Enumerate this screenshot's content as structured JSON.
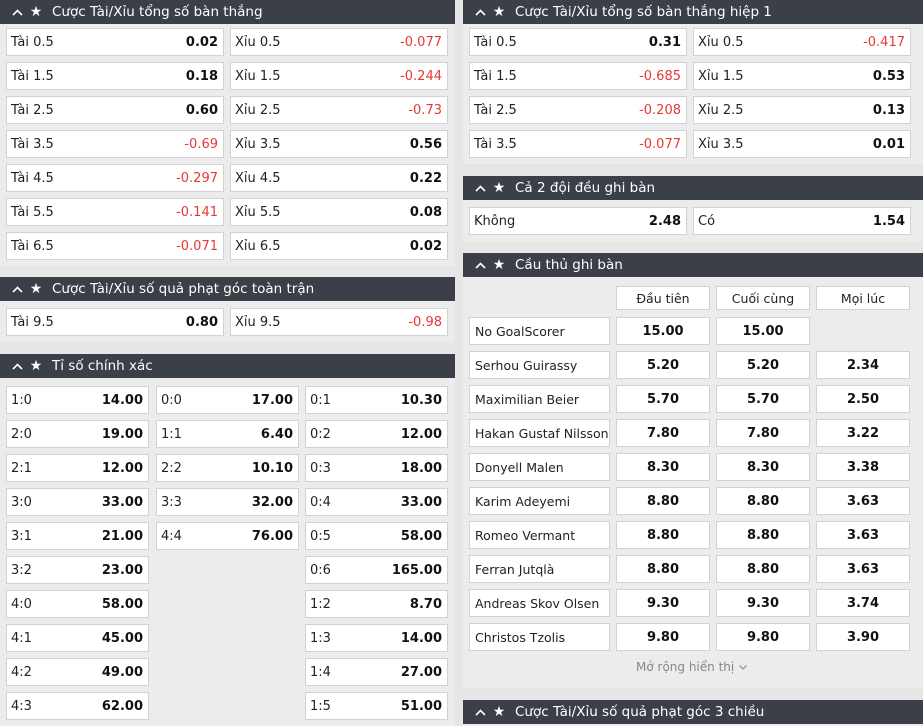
{
  "ou_goals": {
    "title": "Cược Tài/Xỉu tổng số bàn thắng",
    "rows": [
      {
        "over": "Tài 0.5",
        "over_val": "0.02",
        "over_neg": false,
        "under": "Xỉu 0.5",
        "under_val": "-0.077",
        "under_neg": true
      },
      {
        "over": "Tài 1.5",
        "over_val": "0.18",
        "over_neg": false,
        "under": "Xỉu 1.5",
        "under_val": "-0.244",
        "under_neg": true
      },
      {
        "over": "Tài 2.5",
        "over_val": "0.60",
        "over_neg": false,
        "under": "Xỉu 2.5",
        "under_val": "-0.73",
        "under_neg": true
      },
      {
        "over": "Tài 3.5",
        "over_val": "-0.69",
        "over_neg": true,
        "under": "Xỉu 3.5",
        "under_val": "0.56",
        "under_neg": false
      },
      {
        "over": "Tài 4.5",
        "over_val": "-0.297",
        "over_neg": true,
        "under": "Xỉu 4.5",
        "under_val": "0.22",
        "under_neg": false
      },
      {
        "over": "Tài 5.5",
        "over_val": "-0.141",
        "over_neg": true,
        "under": "Xỉu 5.5",
        "under_val": "0.08",
        "under_neg": false
      },
      {
        "over": "Tài 6.5",
        "over_val": "-0.071",
        "over_neg": true,
        "under": "Xỉu 6.5",
        "under_val": "0.02",
        "under_neg": false
      }
    ]
  },
  "ou_corners": {
    "title": "Cược Tài/Xỉu số quả phạt góc toàn trận",
    "rows": [
      {
        "over": "Tài 9.5",
        "over_val": "0.80",
        "over_neg": false,
        "under": "Xỉu 9.5",
        "under_val": "-0.98",
        "under_neg": true
      }
    ]
  },
  "correct_score": {
    "title": "Tỉ số chính xác",
    "col1": [
      {
        "score": "1:0",
        "odds": "14.00"
      },
      {
        "score": "2:0",
        "odds": "19.00"
      },
      {
        "score": "2:1",
        "odds": "12.00"
      },
      {
        "score": "3:0",
        "odds": "33.00"
      },
      {
        "score": "3:1",
        "odds": "21.00"
      },
      {
        "score": "3:2",
        "odds": "23.00"
      },
      {
        "score": "4:0",
        "odds": "58.00"
      },
      {
        "score": "4:1",
        "odds": "45.00"
      },
      {
        "score": "4:2",
        "odds": "49.00"
      },
      {
        "score": "4:3",
        "odds": "62.00"
      }
    ],
    "col2": [
      {
        "score": "0:0",
        "odds": "17.00"
      },
      {
        "score": "1:1",
        "odds": "6.40"
      },
      {
        "score": "2:2",
        "odds": "10.10"
      },
      {
        "score": "3:3",
        "odds": "32.00"
      },
      {
        "score": "4:4",
        "odds": "76.00"
      }
    ],
    "col3": [
      {
        "score": "0:1",
        "odds": "10.30"
      },
      {
        "score": "0:2",
        "odds": "12.00"
      },
      {
        "score": "0:3",
        "odds": "18.00"
      },
      {
        "score": "0:4",
        "odds": "33.00"
      },
      {
        "score": "0:5",
        "odds": "58.00"
      },
      {
        "score": "0:6",
        "odds": "165.00"
      },
      {
        "score": "1:2",
        "odds": "8.70"
      },
      {
        "score": "1:3",
        "odds": "14.00"
      },
      {
        "score": "1:4",
        "odds": "27.00"
      },
      {
        "score": "1:5",
        "odds": "51.00"
      }
    ]
  },
  "ou_goals_h1": {
    "title": "Cược Tài/Xỉu tổng số bàn thắng hiệp 1",
    "rows": [
      {
        "over": "Tài 0.5",
        "over_val": "0.31",
        "over_neg": false,
        "under": "Xỉu 0.5",
        "under_val": "-0.417",
        "under_neg": true
      },
      {
        "over": "Tài 1.5",
        "over_val": "-0.685",
        "over_neg": true,
        "under": "Xỉu 1.5",
        "under_val": "0.53",
        "under_neg": false
      },
      {
        "over": "Tài 2.5",
        "over_val": "-0.208",
        "over_neg": true,
        "under": "Xỉu 2.5",
        "under_val": "0.13",
        "under_neg": false
      },
      {
        "over": "Tài 3.5",
        "over_val": "-0.077",
        "over_neg": true,
        "under": "Xỉu 3.5",
        "under_val": "0.01",
        "under_neg": false
      }
    ]
  },
  "btts": {
    "title": "Cả 2 đội đều ghi bàn",
    "no_label": "Không",
    "no_val": "2.48",
    "yes_label": "Có",
    "yes_val": "1.54"
  },
  "scorers": {
    "title": "Cầu thủ ghi bàn",
    "headers": [
      "Đầu tiên",
      "Cuối cùng",
      "Mọi lúc"
    ],
    "rows": [
      {
        "name": "No GoalScorer",
        "first": "15.00",
        "last": "15.00",
        "any": ""
      },
      {
        "name": "Serhou Guirassy",
        "first": "5.20",
        "last": "5.20",
        "any": "2.34"
      },
      {
        "name": "Maximilian Beier",
        "first": "5.70",
        "last": "5.70",
        "any": "2.50"
      },
      {
        "name": "Hakan Gustaf Nilsson",
        "first": "7.80",
        "last": "7.80",
        "any": "3.22"
      },
      {
        "name": "Donyell Malen",
        "first": "8.30",
        "last": "8.30",
        "any": "3.38"
      },
      {
        "name": "Karim Adeyemi",
        "first": "8.80",
        "last": "8.80",
        "any": "3.63"
      },
      {
        "name": "Romeo Vermant",
        "first": "8.80",
        "last": "8.80",
        "any": "3.63"
      },
      {
        "name": "Ferran Jutqlà",
        "first": "8.80",
        "last": "8.80",
        "any": "3.63"
      },
      {
        "name": "Andreas Skov Olsen",
        "first": "9.30",
        "last": "9.30",
        "any": "3.74"
      },
      {
        "name": "Christos Tzolis",
        "first": "9.80",
        "last": "9.80",
        "any": "3.90"
      }
    ],
    "expand_label": "Mở rộng hiển thị"
  },
  "ou_corners_3way": {
    "title": "Cược Tài/Xỉu số quả phạt góc 3 chiều"
  },
  "icons": {
    "collapse": "chevron-up-icon",
    "favorite": "star-icon",
    "expand": "chevron-down-icon"
  },
  "colors": {
    "header_bg": "#3b3f48",
    "negative": "#e53935"
  }
}
